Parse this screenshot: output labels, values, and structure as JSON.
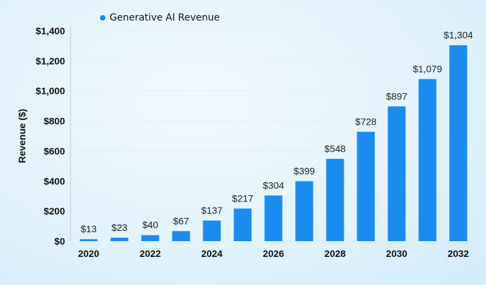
{
  "chart_data": {
    "type": "bar",
    "title": "",
    "legend": {
      "entries": [
        "Generative AI Revenue"
      ],
      "placement": "top"
    },
    "ylabel": "Revenue ($)",
    "xlabel": "",
    "ylim": [
      0,
      1400
    ],
    "yticks": [
      0,
      200,
      400,
      600,
      800,
      1000,
      1200,
      1400
    ],
    "ytick_labels": [
      "$0",
      "$200",
      "$400",
      "$600",
      "$800",
      "$1,000",
      "$1,200",
      "$1,400"
    ],
    "categories": [
      2020,
      2021,
      2022,
      2023,
      2024,
      2025,
      2026,
      2027,
      2028,
      2029,
      2030,
      2031,
      2032
    ],
    "xtick_labels": [
      "2020",
      "",
      "2022",
      "",
      "2024",
      "",
      "2026",
      "",
      "2028",
      "",
      "2030",
      "",
      "2032"
    ],
    "series": [
      {
        "name": "Generative AI Revenue",
        "values": [
          13,
          23,
          40,
          67,
          137,
          217,
          304,
          399,
          548,
          728,
          897,
          1079,
          1304
        ],
        "labels": [
          "$13",
          "$23",
          "$40",
          "$67",
          "$137",
          "$217",
          "$304",
          "$399",
          "$548",
          "$728",
          "$897",
          "$1,079",
          "$1,304"
        ],
        "color": "#1a8cf0"
      }
    ],
    "grid": true
  }
}
